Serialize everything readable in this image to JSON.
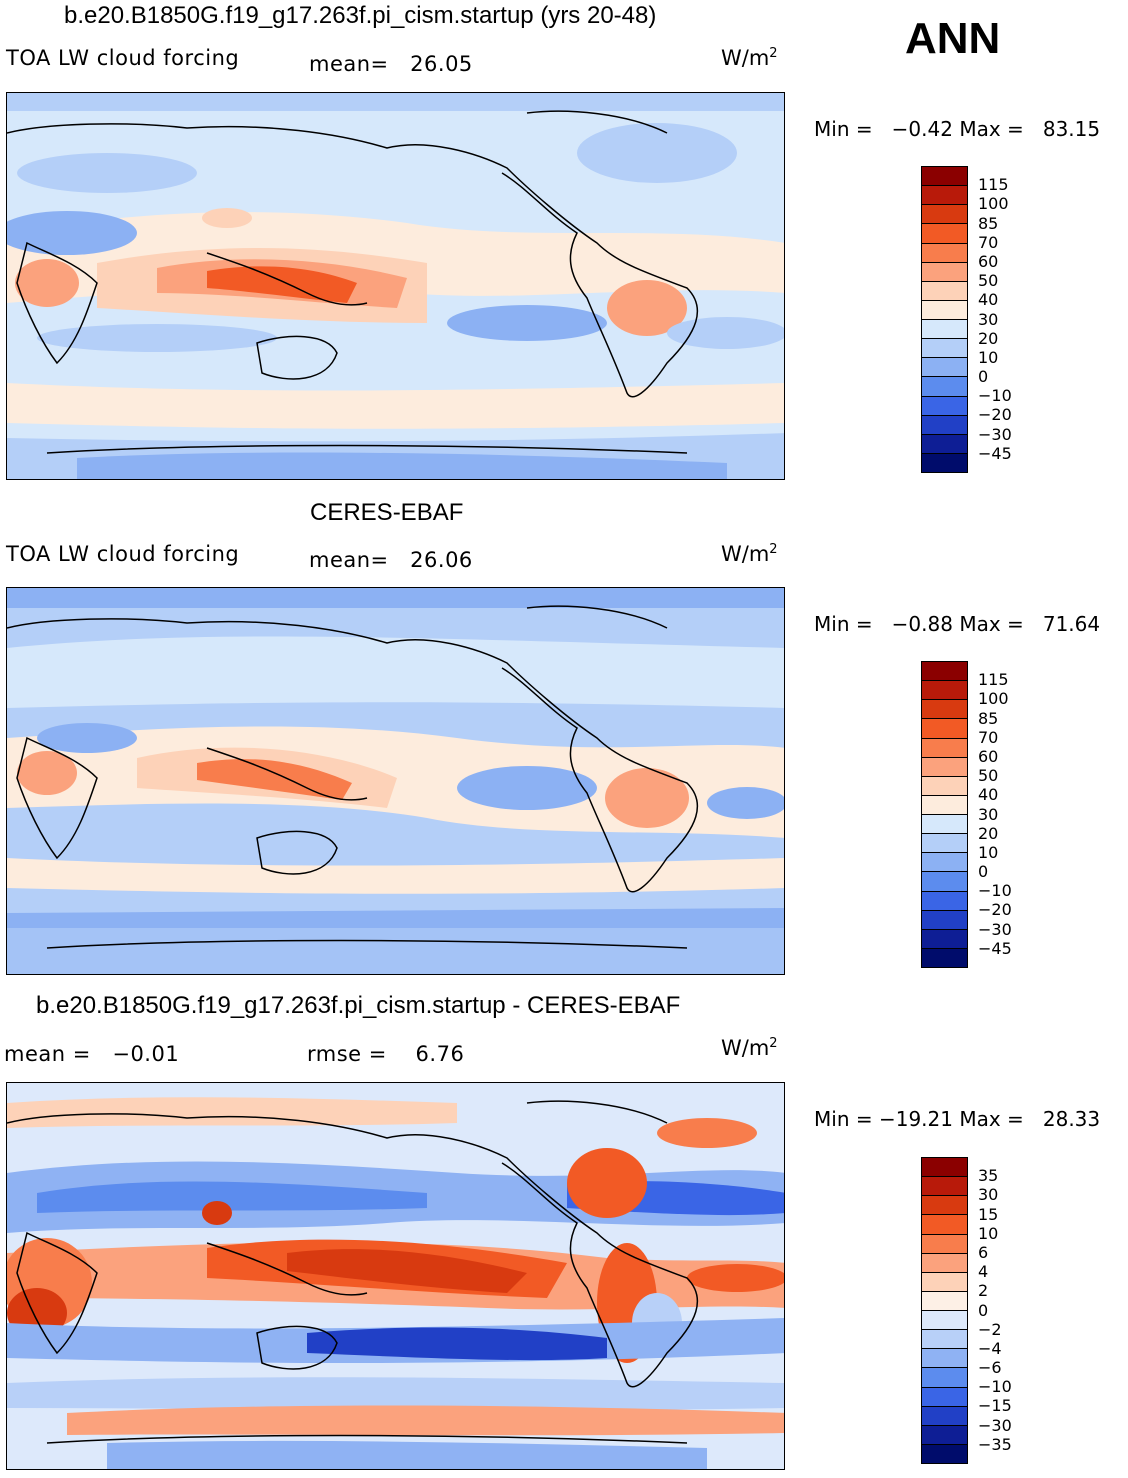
{
  "season": "ANN",
  "panels": [
    {
      "title": "b.e20.B1850G.f19_g17.263f.pi_cism.startup (yrs 20-48)",
      "left_label": "TOA LW cloud forcing",
      "stat1": "mean=   26.05",
      "stat2": "",
      "units": "W/m",
      "units_exp": "2",
      "minmax": "Min =   −0.42 Max =   83.15",
      "levels": [
        "115",
        "100",
        "85",
        "70",
        "60",
        "50",
        "40",
        "30",
        "20",
        "10",
        "0",
        "−10",
        "−20",
        "−30",
        "−45"
      ],
      "colors": [
        "#8b0000",
        "#b81a0a",
        "#d83a10",
        "#f25a25",
        "#f87d4c",
        "#fba27d",
        "#fdd2b8",
        "#fdecdd",
        "#d6e8fb",
        "#b4cff8",
        "#8cb1f3",
        "#5c8cee",
        "#3a65e6",
        "#2140c6",
        "#0e1e95",
        "#000c6b"
      ]
    },
    {
      "title": "CERES-EBAF",
      "left_label": "TOA LW cloud forcing",
      "stat1": "mean=   26.06",
      "stat2": "",
      "units": "W/m",
      "units_exp": "2",
      "minmax": "Min =   −0.88 Max =   71.64",
      "levels": [
        "115",
        "100",
        "85",
        "70",
        "60",
        "50",
        "40",
        "30",
        "20",
        "10",
        "0",
        "−10",
        "−20",
        "−30",
        "−45"
      ],
      "colors": [
        "#8b0000",
        "#b81a0a",
        "#d83a10",
        "#f25a25",
        "#f87d4c",
        "#fba27d",
        "#fdd2b8",
        "#fdecdd",
        "#d6e8fb",
        "#b4cff8",
        "#8cb1f3",
        "#5c8cee",
        "#3a65e6",
        "#2140c6",
        "#0e1e95",
        "#000c6b"
      ]
    },
    {
      "title": "b.e20.B1850G.f19_g17.263f.pi_cism.startup - CERES-EBAF",
      "left_label": "mean =   −0.01",
      "stat1": "rmse =    6.76",
      "stat2": "",
      "units": "W/m",
      "units_exp": "2",
      "minmax": "Min = −19.21 Max =   28.33",
      "levels": [
        "35",
        "30",
        "15",
        "10",
        "6",
        "4",
        "2",
        "0",
        "−2",
        "−4",
        "−6",
        "−10",
        "−15",
        "−30",
        "−35"
      ],
      "colors": [
        "#8b0000",
        "#b81a0a",
        "#d83a10",
        "#f25a25",
        "#f87d4c",
        "#fba27d",
        "#fdd2b8",
        "#fdf0e6",
        "#dde9fb",
        "#b8d0f8",
        "#8fb2f3",
        "#5c8cee",
        "#3a65e6",
        "#2140c6",
        "#0e1e95",
        "#000c6b"
      ]
    }
  ]
}
